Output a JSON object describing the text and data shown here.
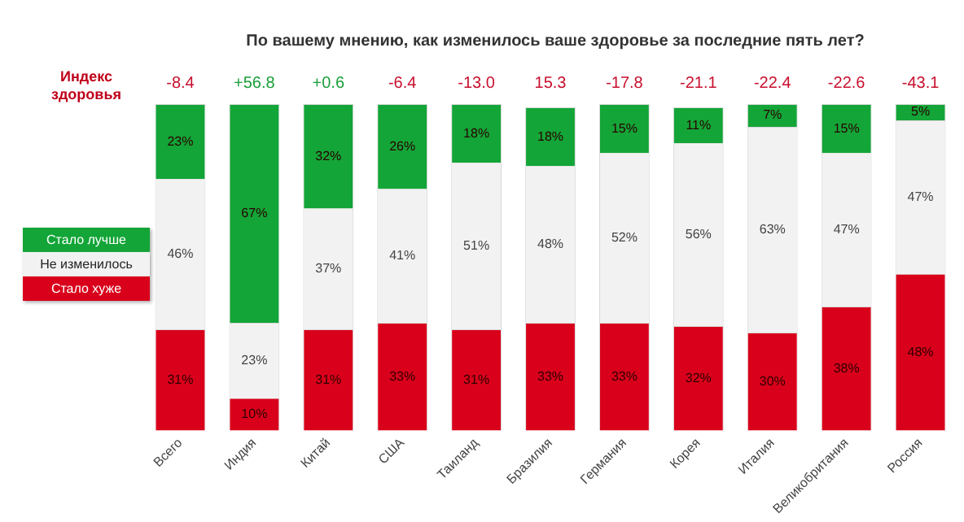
{
  "chart_data": {
    "type": "bar",
    "title": "По вашему мнению, как изменилось ваше здоровье за последние пять лет?",
    "categories": [
      "Всего",
      "Индия",
      "Китай",
      "США",
      "Таиланд",
      "Бразилия",
      "Германия",
      "Корея",
      "Италия",
      "Великобритания",
      "Россия"
    ],
    "series": [
      {
        "name": "Стало хуже",
        "color": "#d9001b",
        "values": [
          31,
          10,
          31,
          33,
          31,
          33,
          33,
          32,
          30,
          38,
          48
        ],
        "value_labels": [
          "31%",
          "10%",
          "31%",
          "33%",
          "31%",
          "33%",
          "33%",
          "32%",
          "30%",
          "38%",
          "48%"
        ]
      },
      {
        "name": "Не изменилось",
        "color": "#f2f2f2",
        "values": [
          46,
          23,
          37,
          41,
          51,
          48,
          52,
          56,
          63,
          47,
          47
        ],
        "value_labels": [
          "46%",
          "23%",
          "37%",
          "41%",
          "51%",
          "48%",
          "52%",
          "56%",
          "63%",
          "47%",
          "47%"
        ]
      },
      {
        "name": "Стало лучше",
        "color": "#13a537",
        "values": [
          23,
          67,
          32,
          26,
          18,
          18,
          15,
          11,
          7,
          15,
          5
        ],
        "value_labels": [
          "23%",
          "67%",
          "32%",
          "26%",
          "18%",
          "18%",
          "15%",
          "11%",
          "7%",
          "15%",
          "5%"
        ]
      }
    ],
    "stacked": true,
    "tick_labels": "x",
    "grid": false,
    "legend": "left",
    "annotations": [
      "Индекс здоровья",
      "-8.4",
      "+56.8",
      "+0.6",
      "-6.4",
      "-13.0",
      "15.3",
      "-17.8",
      "-21.1",
      "-22.4",
      "-22.6",
      "-43.1"
    ]
  }
}
